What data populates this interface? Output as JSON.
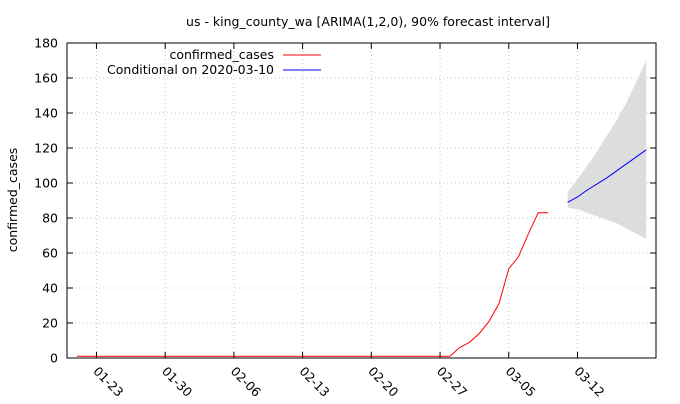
{
  "chart_data": {
    "type": "line",
    "title": "us - king_county_wa [ARIMA(1,2,0), 90% forecast interval]",
    "xlabel": "",
    "ylabel": "confirmed_cases",
    "x_type": "date",
    "xlim": [
      "2020-01-20",
      "2020-03-20"
    ],
    "ylim": [
      0,
      180
    ],
    "yticks": [
      0,
      20,
      40,
      60,
      80,
      100,
      120,
      140,
      160,
      180
    ],
    "xticks": [
      {
        "date": "2020-01-23",
        "label": "01-23"
      },
      {
        "date": "2020-01-30",
        "label": "01-30"
      },
      {
        "date": "2020-02-06",
        "label": "02-06"
      },
      {
        "date": "2020-02-13",
        "label": "02-13"
      },
      {
        "date": "2020-02-20",
        "label": "02-20"
      },
      {
        "date": "2020-02-27",
        "label": "02-27"
      },
      {
        "date": "2020-03-05",
        "label": "03-05"
      },
      {
        "date": "2020-03-12",
        "label": "03-12"
      }
    ],
    "grid": true,
    "legend_position": "top-left",
    "series": [
      {
        "name": "confirmed_cases",
        "color": "#ff0000",
        "points": [
          [
            "2020-01-21",
            1
          ],
          [
            "2020-01-22",
            1
          ],
          [
            "2020-01-23",
            1
          ],
          [
            "2020-01-24",
            1
          ],
          [
            "2020-01-25",
            1
          ],
          [
            "2020-01-26",
            1
          ],
          [
            "2020-01-27",
            1
          ],
          [
            "2020-01-28",
            1
          ],
          [
            "2020-01-29",
            1
          ],
          [
            "2020-01-30",
            1
          ],
          [
            "2020-01-31",
            1
          ],
          [
            "2020-02-01",
            1
          ],
          [
            "2020-02-02",
            1
          ],
          [
            "2020-02-03",
            1
          ],
          [
            "2020-02-04",
            1
          ],
          [
            "2020-02-05",
            1
          ],
          [
            "2020-02-06",
            1
          ],
          [
            "2020-02-07",
            1
          ],
          [
            "2020-02-08",
            1
          ],
          [
            "2020-02-09",
            1
          ],
          [
            "2020-02-10",
            1
          ],
          [
            "2020-02-11",
            1
          ],
          [
            "2020-02-12",
            1
          ],
          [
            "2020-02-13",
            1
          ],
          [
            "2020-02-14",
            1
          ],
          [
            "2020-02-15",
            1
          ],
          [
            "2020-02-16",
            1
          ],
          [
            "2020-02-17",
            1
          ],
          [
            "2020-02-18",
            1
          ],
          [
            "2020-02-19",
            1
          ],
          [
            "2020-02-20",
            1
          ],
          [
            "2020-02-21",
            1
          ],
          [
            "2020-02-22",
            1
          ],
          [
            "2020-02-23",
            1
          ],
          [
            "2020-02-24",
            1
          ],
          [
            "2020-02-25",
            1
          ],
          [
            "2020-02-26",
            1
          ],
          [
            "2020-02-27",
            1
          ],
          [
            "2020-02-28",
            1
          ],
          [
            "2020-02-29",
            6
          ],
          [
            "2020-03-01",
            9
          ],
          [
            "2020-03-02",
            14
          ],
          [
            "2020-03-03",
            21
          ],
          [
            "2020-03-04",
            31
          ],
          [
            "2020-03-05",
            51
          ],
          [
            "2020-03-06",
            58
          ],
          [
            "2020-03-07",
            71
          ],
          [
            "2020-03-08",
            83
          ],
          [
            "2020-03-09",
            83
          ]
        ]
      },
      {
        "name": "Conditional on 2020-03-10",
        "color": "#0000ff",
        "points": [
          [
            "2020-03-11",
            89
          ],
          [
            "2020-03-12",
            92
          ],
          [
            "2020-03-13",
            96
          ],
          [
            "2020-03-14",
            99.5
          ],
          [
            "2020-03-15",
            103
          ],
          [
            "2020-03-16",
            107
          ],
          [
            "2020-03-17",
            111
          ],
          [
            "2020-03-18",
            115
          ],
          [
            "2020-03-19",
            119
          ]
        ]
      }
    ],
    "interval": {
      "color": "#dddddd",
      "points": [
        [
          "2020-03-11",
          86,
          95
        ],
        [
          "2020-03-12",
          85,
          102
        ],
        [
          "2020-03-13",
          83,
          110
        ],
        [
          "2020-03-14",
          81,
          118
        ],
        [
          "2020-03-15",
          79,
          127
        ],
        [
          "2020-03-16",
          77,
          136
        ],
        [
          "2020-03-17",
          74,
          146
        ],
        [
          "2020-03-18",
          71,
          158
        ],
        [
          "2020-03-19",
          68,
          170
        ]
      ]
    }
  }
}
